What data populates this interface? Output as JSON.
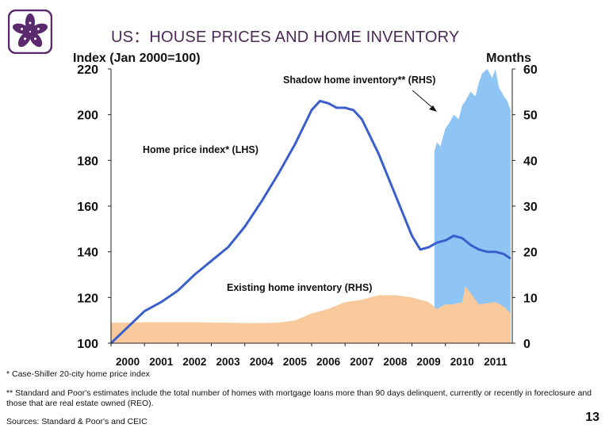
{
  "page": {
    "title": "US：HOUSE PRICES AND HOME INVENTORY",
    "footnote1": "* Case-Shiller 20-city home price index",
    "footnote2": "** Standard and Poor's estimates include the total number of homes with mortgage loans more than 90 days delinquent, currently or recently in foreclosure and those that are real estate owned (REO).",
    "sources": "Sources: Standard & Poor's and CEIC",
    "page_number": "13",
    "logo_icon": "bauhinia-flower-icon",
    "colors": {
      "title": "#4b2a55",
      "price_line": "#3a5fcd",
      "shadow_area": "#8ec5f5",
      "existing_area": "#f8c99a",
      "logo": "#5b2a6e"
    }
  },
  "chart_data": {
    "type": "area",
    "left_axis_label": "Index (Jan 2000=100)",
    "right_axis_label": "Months",
    "ylim_left": [
      100,
      220
    ],
    "ylim_right": [
      0,
      60
    ],
    "yticks_left": [
      "100",
      "120",
      "140",
      "160",
      "180",
      "200",
      "220"
    ],
    "yticks_right": [
      "0",
      "10",
      "20",
      "30",
      "40",
      "50",
      "60"
    ],
    "xlim": [
      2000.0,
      2012.0
    ],
    "xticks": [
      "2000",
      "2001",
      "2002",
      "2003",
      "2004",
      "2005",
      "2006",
      "2007",
      "2008",
      "2009",
      "2010",
      "2011"
    ],
    "grid": false,
    "series": [
      {
        "name": "Home price index* (LHS)",
        "kind": "line",
        "axis": "left",
        "x": [
          2000.0,
          2000.5,
          2001.0,
          2001.5,
          2002.0,
          2002.5,
          2003.0,
          2003.5,
          2004.0,
          2004.5,
          2005.0,
          2005.5,
          2006.0,
          2006.25,
          2006.5,
          2006.75,
          2007.0,
          2007.25,
          2007.5,
          2008.0,
          2008.5,
          2009.0,
          2009.25,
          2009.5,
          2009.75,
          2010.0,
          2010.25,
          2010.5,
          2010.75,
          2011.0,
          2011.25,
          2011.5,
          2011.75,
          2011.95
        ],
        "y": [
          100,
          107,
          114,
          118,
          123,
          130,
          136,
          142,
          151,
          162,
          174,
          187,
          202,
          206,
          205,
          203,
          203,
          202,
          198,
          183,
          165,
          147,
          141,
          142,
          144,
          145,
          147,
          146,
          143,
          141,
          140,
          140,
          139,
          137
        ]
      },
      {
        "name": "Shadow home inventory** (RHS)",
        "kind": "area",
        "axis": "right",
        "x": [
          2009.67,
          2009.75,
          2009.85,
          2010.0,
          2010.1,
          2010.25,
          2010.4,
          2010.5,
          2010.6,
          2010.75,
          2010.9,
          2011.0,
          2011.1,
          2011.25,
          2011.4,
          2011.5,
          2011.6,
          2011.75,
          2011.85,
          2011.95
        ],
        "y": [
          42,
          44,
          43,
          47,
          48,
          50,
          49,
          52,
          53,
          55,
          54,
          57,
          59,
          60,
          58,
          60,
          56,
          54,
          53,
          51
        ]
      },
      {
        "name": "Existing home inventory (RHS)",
        "kind": "area",
        "axis": "right",
        "x": [
          2000.0,
          2000.5,
          2001.0,
          2001.5,
          2002.0,
          2002.5,
          2003.0,
          2003.5,
          2004.0,
          2004.5,
          2005.0,
          2005.5,
          2006.0,
          2006.5,
          2007.0,
          2007.5,
          2008.0,
          2008.5,
          2009.0,
          2009.5,
          2009.75,
          2010.0,
          2010.25,
          2010.5,
          2010.6,
          2010.75,
          2011.0,
          2011.5,
          2011.75,
          2011.95
        ],
        "y": [
          4.5,
          4.5,
          4.6,
          4.6,
          4.6,
          4.6,
          4.5,
          4.5,
          4.4,
          4.4,
          4.5,
          5.0,
          6.5,
          7.5,
          9.0,
          9.5,
          10.5,
          10.5,
          10.0,
          9.0,
          7.5,
          8.5,
          8.5,
          9.0,
          12.5,
          11.0,
          8.5,
          9.0,
          8.0,
          6.5
        ]
      }
    ],
    "annotations": [
      {
        "text": "Shadow home inventory** (RHS)"
      },
      {
        "text": "Home price index* (LHS)"
      },
      {
        "text": "Existing home inventory (RHS)"
      }
    ]
  }
}
